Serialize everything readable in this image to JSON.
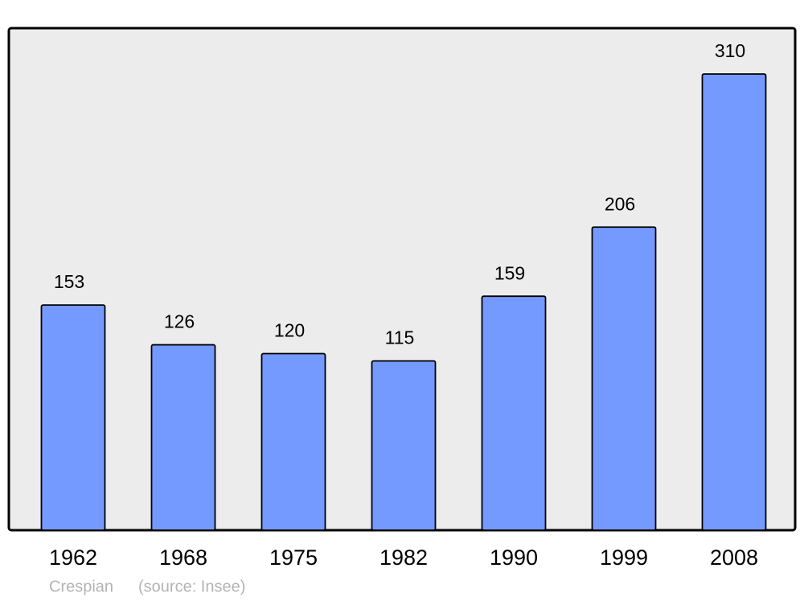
{
  "chart_data": {
    "type": "bar",
    "categories": [
      "1962",
      "1968",
      "1975",
      "1982",
      "1990",
      "1999",
      "2008"
    ],
    "values": [
      153,
      126,
      120,
      115,
      159,
      206,
      310
    ],
    "color": "#7499ff",
    "caption": "Crespian",
    "source": "(source: Insee)"
  }
}
